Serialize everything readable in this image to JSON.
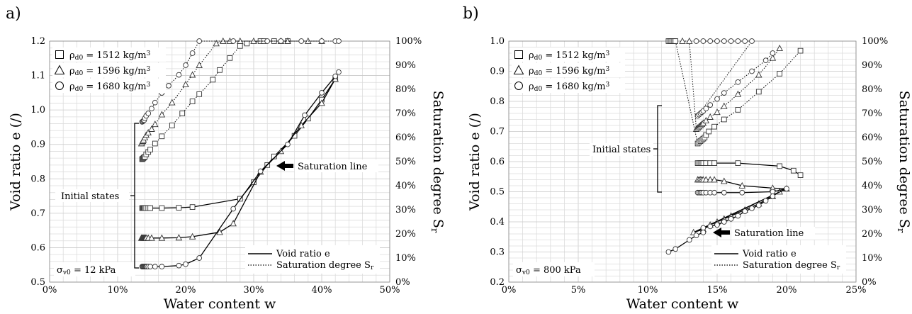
{
  "chart_data": [
    {
      "type": "line",
      "panel_label": "a)",
      "xlabel": "Water content w",
      "ylabel": "Void ratio e (/)",
      "y2label": "Saturation degree S",
      "y2label_sub": "r",
      "xlim": [
        0,
        0.5
      ],
      "xticks": [
        "0%",
        "10%",
        "20%",
        "30%",
        "40%",
        "50%"
      ],
      "ylim": [
        0.5,
        1.2
      ],
      "yticks": [
        "0.5",
        "0.6",
        "0.7",
        "0.8",
        "0.9",
        "1.0",
        "1.1",
        "1.2"
      ],
      "y2lim": [
        0,
        1.0
      ],
      "y2ticks": [
        "0%",
        "10%",
        "20%",
        "30%",
        "40%",
        "50%",
        "60%",
        "70%",
        "80%",
        "90%",
        "100%"
      ],
      "grid": true,
      "legend_placement": "top-left",
      "stress_label_main": "σ",
      "stress_label_sub": "v0",
      "stress_label_value": " = 12 kPa",
      "annotation_initial": "Initial states",
      "annotation_saturation": "Saturation line",
      "line_legend": [
        {
          "label": "Void ratio e",
          "style": "solid"
        },
        {
          "label": "Saturation degree S",
          "sub": "r",
          "style": "dotted"
        }
      ],
      "series": [
        {
          "name": "ρd0 = 1512 kg/m3",
          "name_main": "ρ",
          "name_sub": "d0",
          "name_value": " = 1512 kg/m",
          "name_sup": "3",
          "marker": "square",
          "void_ratio": {
            "x": [
              0.136,
              0.137,
              0.138,
              0.139,
              0.14,
              0.142,
              0.145,
              0.148,
              0.165,
              0.19,
              0.21,
              0.28,
              0.3,
              0.32,
              0.33,
              0.36,
              0.38,
              0.4,
              0.42
            ],
            "y": [
              0.715,
              0.715,
              0.715,
              0.715,
              0.715,
              0.715,
              0.715,
              0.715,
              0.715,
              0.716,
              0.718,
              0.742,
              0.79,
              0.84,
              0.865,
              0.925,
              0.975,
              1.03,
              1.09
            ]
          },
          "saturation": {
            "x": [
              0.136,
              0.137,
              0.138,
              0.139,
              0.14,
              0.142,
              0.145,
              0.148,
              0.155,
              0.165,
              0.18,
              0.195,
              0.21,
              0.22,
              0.24,
              0.25,
              0.265,
              0.28,
              0.29,
              0.31,
              0.315,
              0.33,
              0.35
            ],
            "y": [
              0.51,
              0.512,
              0.515,
              0.518,
              0.52,
              0.53,
              0.54,
              0.55,
              0.575,
              0.605,
              0.65,
              0.7,
              0.75,
              0.78,
              0.84,
              0.88,
              0.93,
              0.98,
              0.99,
              1.0,
              1.0,
              1.0,
              1.0
            ]
          }
        },
        {
          "name": "ρd0 = 1596 kg/m3",
          "name_main": "ρ",
          "name_sub": "d0",
          "name_value": " = 1596 kg/m",
          "name_sup": "3",
          "marker": "triangle",
          "void_ratio": {
            "x": [
              0.135,
              0.136,
              0.137,
              0.138,
              0.139,
              0.14,
              0.141,
              0.142,
              0.145,
              0.15,
              0.165,
              0.19,
              0.21,
              0.25,
              0.27,
              0.31,
              0.34,
              0.37,
              0.4,
              0.42
            ],
            "y": [
              0.628,
              0.628,
              0.628,
              0.628,
              0.628,
              0.628,
              0.628,
              0.628,
              0.628,
              0.628,
              0.628,
              0.629,
              0.632,
              0.645,
              0.67,
              0.82,
              0.88,
              0.955,
              1.02,
              1.09
            ]
          },
          "saturation": {
            "x": [
              0.135,
              0.136,
              0.137,
              0.138,
              0.14,
              0.142,
              0.145,
              0.15,
              0.155,
              0.165,
              0.18,
              0.2,
              0.21,
              0.22,
              0.245,
              0.255,
              0.265,
              0.28,
              0.3,
              0.34,
              0.35,
              0.38,
              0.4
            ],
            "y": [
              0.575,
              0.58,
              0.585,
              0.59,
              0.6,
              0.61,
              0.62,
              0.635,
              0.655,
              0.695,
              0.745,
              0.82,
              0.86,
              0.9,
              0.99,
              1.0,
              1.0,
              1.0,
              1.0,
              1.0,
              1.0,
              1.0,
              1.0
            ]
          }
        },
        {
          "name": "ρd0 = 1680 kg/m3",
          "name_main": "ρ",
          "name_sub": "d0",
          "name_value": " = 1680 kg/m",
          "name_sup": "3",
          "marker": "circle",
          "void_ratio": {
            "x": [
              0.136,
              0.137,
              0.138,
              0.139,
              0.14,
              0.141,
              0.142,
              0.143,
              0.145,
              0.148,
              0.155,
              0.165,
              0.19,
              0.2,
              0.22,
              0.27,
              0.31,
              0.35,
              0.375,
              0.4,
              0.42,
              0.425
            ],
            "y": [
              0.545,
              0.545,
              0.545,
              0.545,
              0.545,
              0.545,
              0.545,
              0.545,
              0.545,
              0.545,
              0.545,
              0.545,
              0.548,
              0.552,
              0.57,
              0.713,
              0.822,
              0.9,
              0.985,
              1.05,
              1.098,
              1.11
            ]
          },
          "saturation": {
            "x": [
              0.136,
              0.137,
              0.138,
              0.139,
              0.14,
              0.142,
              0.145,
              0.15,
              0.155,
              0.165,
              0.175,
              0.19,
              0.2,
              0.21,
              0.22,
              0.27,
              0.32,
              0.34,
              0.37,
              0.4,
              0.42,
              0.425
            ],
            "y": [
              0.665,
              0.667,
              0.67,
              0.672,
              0.68,
              0.69,
              0.7,
              0.72,
              0.745,
              0.785,
              0.815,
              0.86,
              0.9,
              0.95,
              1.0,
              1.0,
              1.0,
              1.0,
              1.0,
              1.0,
              1.0,
              1.0
            ]
          }
        }
      ]
    },
    {
      "type": "line",
      "panel_label": "b)",
      "xlabel": "Water content w",
      "ylabel": "Void ratio e (/)",
      "y2label": "Saturation degree S",
      "y2label_sub": "r",
      "xlim": [
        0,
        0.25
      ],
      "xticks": [
        "0%",
        "5%",
        "10%",
        "15%",
        "20%",
        "25%"
      ],
      "ylim": [
        0.2,
        1.0
      ],
      "yticks": [
        "0.2",
        "0.3",
        "0.4",
        "0.5",
        "0.6",
        "0.7",
        "0.8",
        "0.9",
        "1.0"
      ],
      "y2lim": [
        0,
        1.0
      ],
      "y2ticks": [
        "0%",
        "10%",
        "20%",
        "30%",
        "40%",
        "50%",
        "60%",
        "70%",
        "80%",
        "90%",
        "100%"
      ],
      "grid": true,
      "legend_placement": "top-left",
      "stress_label_main": "σ",
      "stress_label_sub": "v0",
      "stress_label_value": " = 800 kPa",
      "annotation_initial": "Initial states",
      "annotation_saturation": "Saturation line",
      "line_legend": [
        {
          "label": "Void ratio e",
          "style": "solid"
        },
        {
          "label": "Saturation degree S",
          "sub": "r",
          "style": "dotted"
        }
      ],
      "series": [
        {
          "name": "ρd0 = 1512 kg/m3",
          "name_main": "ρ",
          "name_sub": "d0",
          "name_value": " = 1512 kg/m",
          "name_sup": "3",
          "marker": "square",
          "void_ratio": {
            "x": [
              0.136,
              0.137,
              0.138,
              0.139,
              0.14,
              0.142,
              0.145,
              0.148,
              0.165,
              0.195,
              0.205,
              0.21
            ],
            "y": [
              0.595,
              0.595,
              0.595,
              0.595,
              0.595,
              0.595,
              0.595,
              0.595,
              0.595,
              0.585,
              0.57,
              0.555
            ]
          },
          "saturation": {
            "x": [
              0.115,
              0.116,
              0.117,
              0.118,
              0.119,
              0.12,
              0.136,
              0.137,
              0.138,
              0.139,
              0.14,
              0.141,
              0.142,
              0.144,
              0.148,
              0.155,
              0.165,
              0.18,
              0.195,
              0.21
            ],
            "y": [
              1.0,
              1.0,
              1.0,
              1.0,
              1.0,
              1.0,
              0.575,
              0.58,
              0.585,
              0.59,
              0.595,
              0.6,
              0.61,
              0.625,
              0.645,
              0.675,
              0.715,
              0.79,
              0.865,
              0.96
            ]
          }
        },
        {
          "name": "ρd0 = 1596 kg/m3",
          "name_main": "ρ",
          "name_sub": "d0",
          "name_value": " = 1596 kg/m",
          "name_sup": "3",
          "marker": "triangle",
          "void_ratio": {
            "x": [
              0.136,
              0.137,
              0.138,
              0.139,
              0.14,
              0.142,
              0.145,
              0.148,
              0.155,
              0.168,
              0.19,
              0.2,
              0.133,
              0.14,
              0.145,
              0.15,
              0.155,
              0.16,
              0.17,
              0.18,
              0.19,
              0.195
            ],
            "y": [
              0.54,
              0.54,
              0.54,
              0.54,
              0.54,
              0.54,
              0.54,
              0.54,
              0.535,
              0.52,
              0.512,
              0.51,
              0.365,
              0.375,
              0.39,
              0.4,
              0.41,
              0.42,
              0.44,
              0.46,
              0.485,
              0.5
            ]
          },
          "saturation": {
            "x": [
              0.125,
              0.13,
              0.135,
              0.136,
              0.137,
              0.138,
              0.139,
              0.14,
              0.142,
              0.145,
              0.15,
              0.155,
              0.165,
              0.18,
              0.19,
              0.195
            ],
            "y": [
              1.0,
              1.0,
              0.635,
              0.64,
              0.645,
              0.65,
              0.655,
              0.66,
              0.67,
              0.685,
              0.705,
              0.73,
              0.78,
              0.86,
              0.93,
              0.97
            ]
          }
        },
        {
          "name": "ρd0 = 1680 kg/m3",
          "name_main": "ρ",
          "name_sub": "d0",
          "name_value": " = 1680 kg/m",
          "name_sup": "3",
          "marker": "circle",
          "void_ratio": {
            "x": [
              0.136,
              0.137,
              0.138,
              0.139,
              0.14,
              0.142,
              0.145,
              0.148,
              0.155,
              0.168,
              0.19,
              0.2,
              0.14,
              0.145,
              0.15,
              0.155,
              0.16,
              0.165,
              0.17,
              0.175,
              0.18,
              0.185,
              0.19
            ],
            "y": [
              0.497,
              0.497,
              0.497,
              0.497,
              0.497,
              0.497,
              0.497,
              0.497,
              0.497,
              0.497,
              0.5,
              0.51,
              0.38,
              0.385,
              0.39,
              0.4,
              0.41,
              0.42,
              0.435,
              0.445,
              0.455,
              0.47,
              0.485
            ]
          },
          "saturation": {
            "x": [
              0.135,
              0.14,
              0.145,
              0.15,
              0.155,
              0.16,
              0.165,
              0.17,
              0.175,
              0.136,
              0.137,
              0.138,
              0.139,
              0.14,
              0.142,
              0.145,
              0.15,
              0.155,
              0.165,
              0.175,
              0.185,
              0.19
            ],
            "y": [
              1.0,
              1.0,
              1.0,
              1.0,
              1.0,
              1.0,
              1.0,
              1.0,
              1.0,
              0.69,
              0.695,
              0.7,
              0.705,
              0.71,
              0.72,
              0.735,
              0.76,
              0.785,
              0.83,
              0.875,
              0.92,
              0.95
            ]
          }
        }
      ],
      "extra_void_ratio_points": {
        "x": [
          0.115,
          0.12,
          0.13,
          0.135,
          0.14
        ],
        "y": [
          0.3,
          0.31,
          0.34,
          0.355,
          0.365
        ]
      }
    }
  ]
}
